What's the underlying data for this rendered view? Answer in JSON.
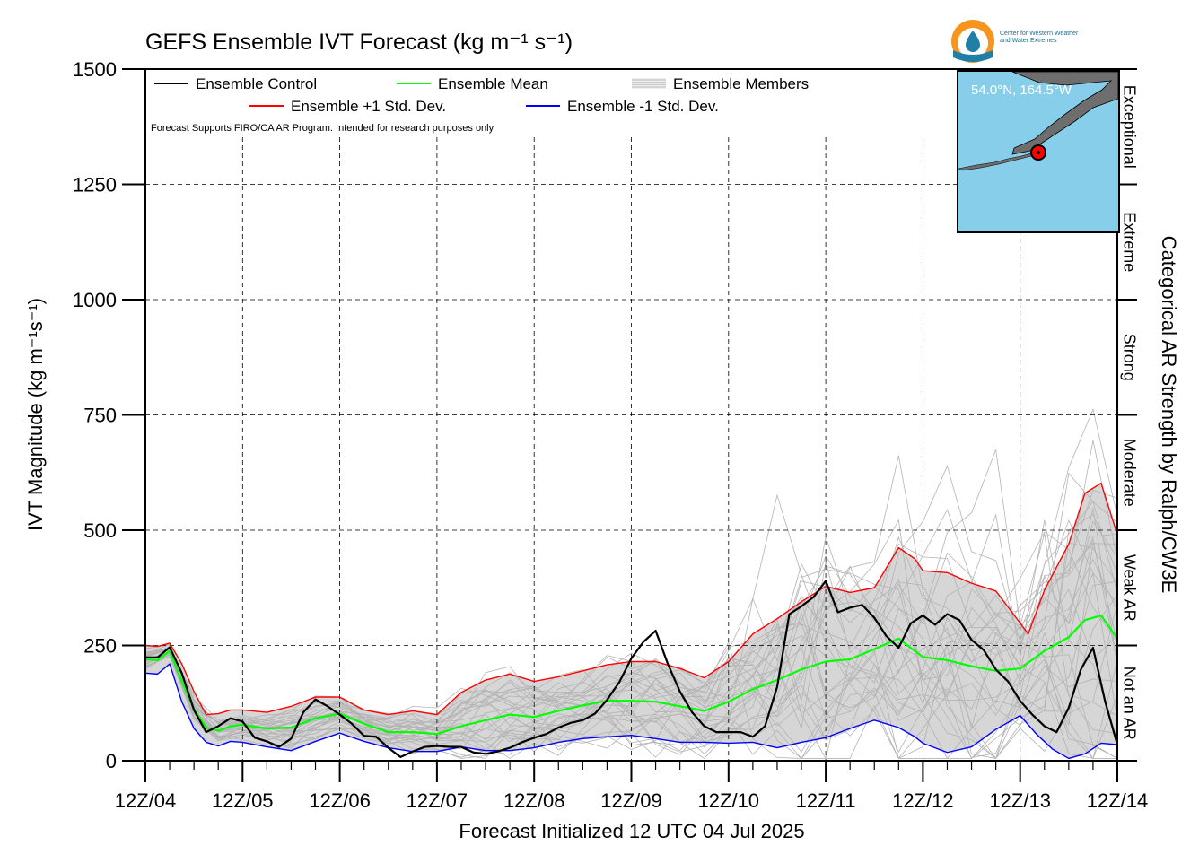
{
  "header": {
    "title": "GEFS Ensemble IVT Forecast (kg m⁻¹ s⁻¹)",
    "note": "Forecast Supports FIRO/CA AR Program. Intended for research purposes only"
  },
  "logo": {
    "line1": "Center for Western Weather",
    "line2": "and Water Extremes",
    "colors": {
      "orange": "#f7941d",
      "blue": "#1f7fa6"
    }
  },
  "inset_map": {
    "location_label": "54.0°N, 164.5°W",
    "ocean_color": "#87ceeb",
    "land_color": "#6e6e6e",
    "marker_color": "#ff0000"
  },
  "chart_data": {
    "type": "line",
    "title": "GEFS Ensemble IVT Forecast (kg m⁻¹ s⁻¹)",
    "xlabel": "Forecast Initialized 12 UTC 04 Jul 2025",
    "ylabel": "IVT Magnitude (kg m⁻¹s⁻¹)",
    "ylabel_right": "Categorical AR Strength by Ralph/CW3E",
    "ylim": [
      0,
      1500
    ],
    "xlim": [
      0,
      240
    ],
    "x_units": "forecast hours",
    "yticks": [
      0,
      250,
      500,
      750,
      1000,
      1250,
      1500
    ],
    "xticks": [
      {
        "x": 0,
        "label": "12Z/04"
      },
      {
        "x": 24,
        "label": "12Z/05"
      },
      {
        "x": 48,
        "label": "12Z/06"
      },
      {
        "x": 72,
        "label": "12Z/07"
      },
      {
        "x": 96,
        "label": "12Z/08"
      },
      {
        "x": 120,
        "label": "12Z/09"
      },
      {
        "x": 144,
        "label": "12Z/10"
      },
      {
        "x": 168,
        "label": "12Z/11"
      },
      {
        "x": 192,
        "label": "12Z/12"
      },
      {
        "x": 216,
        "label": "12Z/13"
      },
      {
        "x": 240,
        "label": "12Z/14"
      }
    ],
    "categories_right": [
      {
        "label": "Not an AR",
        "from": 0,
        "to": 250
      },
      {
        "label": "Weak AR",
        "from": 250,
        "to": 500
      },
      {
        "label": "Moderate",
        "from": 500,
        "to": 750
      },
      {
        "label": "Strong",
        "from": 750,
        "to": 1000
      },
      {
        "label": "Extreme",
        "from": 1000,
        "to": 1250
      },
      {
        "label": "Exceptional",
        "from": 1250,
        "to": 1500
      }
    ],
    "grid": true,
    "legend_position": "top-left",
    "legend": [
      {
        "label": "Ensemble Control",
        "color": "#000000"
      },
      {
        "label": "Ensemble Mean",
        "color": "#00ff00"
      },
      {
        "label": "Ensemble Members",
        "color": "#bbbbbb"
      },
      {
        "label": "Ensemble +1 Std. Dev.",
        "color": "#ff0000"
      },
      {
        "label": "Ensemble -1 Std. Dev.",
        "color": "#0000ff"
      }
    ],
    "series": [
      {
        "name": "Ensemble Control",
        "color": "#000000",
        "points": [
          [
            0,
            224
          ],
          [
            3,
            224
          ],
          [
            6,
            246
          ],
          [
            9,
            190
          ],
          [
            12,
            110
          ],
          [
            15,
            62
          ],
          [
            18,
            75
          ],
          [
            21,
            92
          ],
          [
            24,
            85
          ],
          [
            27,
            50
          ],
          [
            30,
            42
          ],
          [
            33,
            30
          ],
          [
            36,
            48
          ],
          [
            39,
            105
          ],
          [
            42,
            133
          ],
          [
            45,
            118
          ],
          [
            48,
            100
          ],
          [
            51,
            80
          ],
          [
            54,
            54
          ],
          [
            57,
            52
          ],
          [
            60,
            28
          ],
          [
            63,
            8
          ],
          [
            66,
            20
          ],
          [
            69,
            30
          ],
          [
            72,
            32
          ],
          [
            75,
            30
          ],
          [
            78,
            30
          ],
          [
            81,
            18
          ],
          [
            84,
            15
          ],
          [
            87,
            20
          ],
          [
            90,
            28
          ],
          [
            93,
            40
          ],
          [
            96,
            50
          ],
          [
            99,
            58
          ],
          [
            102,
            72
          ],
          [
            105,
            82
          ],
          [
            108,
            88
          ],
          [
            111,
            102
          ],
          [
            114,
            132
          ],
          [
            117,
            170
          ],
          [
            120,
            222
          ],
          [
            123,
            258
          ],
          [
            126,
            282
          ],
          [
            129,
            210
          ],
          [
            132,
            150
          ],
          [
            135,
            105
          ],
          [
            138,
            75
          ],
          [
            141,
            62
          ],
          [
            144,
            62
          ],
          [
            147,
            62
          ],
          [
            150,
            52
          ],
          [
            153,
            75
          ],
          [
            156,
            160
          ],
          [
            159,
            318
          ],
          [
            162,
            335
          ],
          [
            165,
            355
          ],
          [
            168,
            390
          ],
          [
            171,
            322
          ],
          [
            174,
            332
          ],
          [
            177,
            338
          ],
          [
            180,
            310
          ],
          [
            183,
            270
          ],
          [
            186,
            245
          ],
          [
            189,
            298
          ],
          [
            192,
            315
          ],
          [
            195,
            295
          ],
          [
            198,
            318
          ],
          [
            201,
            305
          ],
          [
            204,
            262
          ],
          [
            207,
            240
          ],
          [
            210,
            198
          ],
          [
            213,
            172
          ],
          [
            216,
            130
          ],
          [
            219,
            100
          ],
          [
            222,
            75
          ],
          [
            225,
            62
          ],
          [
            228,
            115
          ],
          [
            231,
            198
          ],
          [
            234,
            245
          ],
          [
            237,
            128
          ],
          [
            240,
            35
          ]
        ]
      },
      {
        "name": "Ensemble Mean",
        "color": "#00ff00",
        "points": [
          [
            0,
            220
          ],
          [
            3,
            218
          ],
          [
            6,
            238
          ],
          [
            9,
            172
          ],
          [
            12,
            112
          ],
          [
            15,
            72
          ],
          [
            18,
            65
          ],
          [
            21,
            75
          ],
          [
            24,
            78
          ],
          [
            30,
            70
          ],
          [
            36,
            72
          ],
          [
            42,
            92
          ],
          [
            48,
            102
          ],
          [
            54,
            80
          ],
          [
            60,
            62
          ],
          [
            66,
            62
          ],
          [
            72,
            58
          ],
          [
            78,
            75
          ],
          [
            84,
            88
          ],
          [
            90,
            100
          ],
          [
            96,
            95
          ],
          [
            102,
            108
          ],
          [
            108,
            120
          ],
          [
            114,
            130
          ],
          [
            120,
            130
          ],
          [
            126,
            128
          ],
          [
            132,
            118
          ],
          [
            138,
            108
          ],
          [
            144,
            128
          ],
          [
            150,
            155
          ],
          [
            156,
            175
          ],
          [
            162,
            198
          ],
          [
            168,
            215
          ],
          [
            174,
            220
          ],
          [
            180,
            242
          ],
          [
            186,
            265
          ],
          [
            190,
            238
          ],
          [
            192,
            225
          ],
          [
            198,
            218
          ],
          [
            204,
            205
          ],
          [
            210,
            195
          ],
          [
            216,
            200
          ],
          [
            222,
            238
          ],
          [
            228,
            268
          ],
          [
            232,
            305
          ],
          [
            236,
            315
          ],
          [
            240,
            265
          ]
        ]
      },
      {
        "name": "Ensemble +1 Std. Dev.",
        "color": "#ff0000",
        "points": [
          [
            0,
            250
          ],
          [
            3,
            248
          ],
          [
            6,
            255
          ],
          [
            9,
            210
          ],
          [
            12,
            150
          ],
          [
            15,
            100
          ],
          [
            18,
            102
          ],
          [
            21,
            110
          ],
          [
            24,
            110
          ],
          [
            30,
            105
          ],
          [
            36,
            118
          ],
          [
            42,
            138
          ],
          [
            48,
            138
          ],
          [
            54,
            110
          ],
          [
            60,
            100
          ],
          [
            66,
            108
          ],
          [
            72,
            100
          ],
          [
            78,
            148
          ],
          [
            84,
            175
          ],
          [
            90,
            188
          ],
          [
            96,
            172
          ],
          [
            102,
            182
          ],
          [
            108,
            195
          ],
          [
            114,
            208
          ],
          [
            120,
            215
          ],
          [
            126,
            215
          ],
          [
            132,
            200
          ],
          [
            138,
            180
          ],
          [
            144,
            215
          ],
          [
            150,
            275
          ],
          [
            156,
            308
          ],
          [
            162,
            345
          ],
          [
            168,
            378
          ],
          [
            174,
            365
          ],
          [
            180,
            375
          ],
          [
            186,
            462
          ],
          [
            190,
            438
          ],
          [
            192,
            412
          ],
          [
            198,
            408
          ],
          [
            204,
            385
          ],
          [
            210,
            368
          ],
          [
            214,
            322
          ],
          [
            218,
            275
          ],
          [
            222,
            370
          ],
          [
            228,
            470
          ],
          [
            232,
            580
          ],
          [
            236,
            602
          ],
          [
            240,
            490
          ]
        ]
      },
      {
        "name": "Ensemble -1 Std. Dev.",
        "color": "#0000ff",
        "points": [
          [
            0,
            190
          ],
          [
            3,
            188
          ],
          [
            6,
            210
          ],
          [
            9,
            128
          ],
          [
            12,
            70
          ],
          [
            15,
            40
          ],
          [
            18,
            32
          ],
          [
            21,
            42
          ],
          [
            24,
            40
          ],
          [
            30,
            30
          ],
          [
            36,
            22
          ],
          [
            42,
            42
          ],
          [
            48,
            60
          ],
          [
            54,
            42
          ],
          [
            60,
            28
          ],
          [
            66,
            20
          ],
          [
            72,
            20
          ],
          [
            78,
            30
          ],
          [
            84,
            22
          ],
          [
            90,
            22
          ],
          [
            96,
            28
          ],
          [
            102,
            40
          ],
          [
            108,
            48
          ],
          [
            114,
            52
          ],
          [
            120,
            55
          ],
          [
            126,
            48
          ],
          [
            132,
            40
          ],
          [
            138,
            40
          ],
          [
            144,
            38
          ],
          [
            150,
            40
          ],
          [
            156,
            28
          ],
          [
            162,
            40
          ],
          [
            168,
            50
          ],
          [
            174,
            70
          ],
          [
            180,
            88
          ],
          [
            186,
            72
          ],
          [
            190,
            52
          ],
          [
            192,
            38
          ],
          [
            198,
            18
          ],
          [
            204,
            30
          ],
          [
            210,
            68
          ],
          [
            216,
            98
          ],
          [
            220,
            58
          ],
          [
            224,
            25
          ],
          [
            228,
            5
          ],
          [
            232,
            15
          ],
          [
            236,
            38
          ],
          [
            240,
            35
          ]
        ]
      }
    ]
  }
}
